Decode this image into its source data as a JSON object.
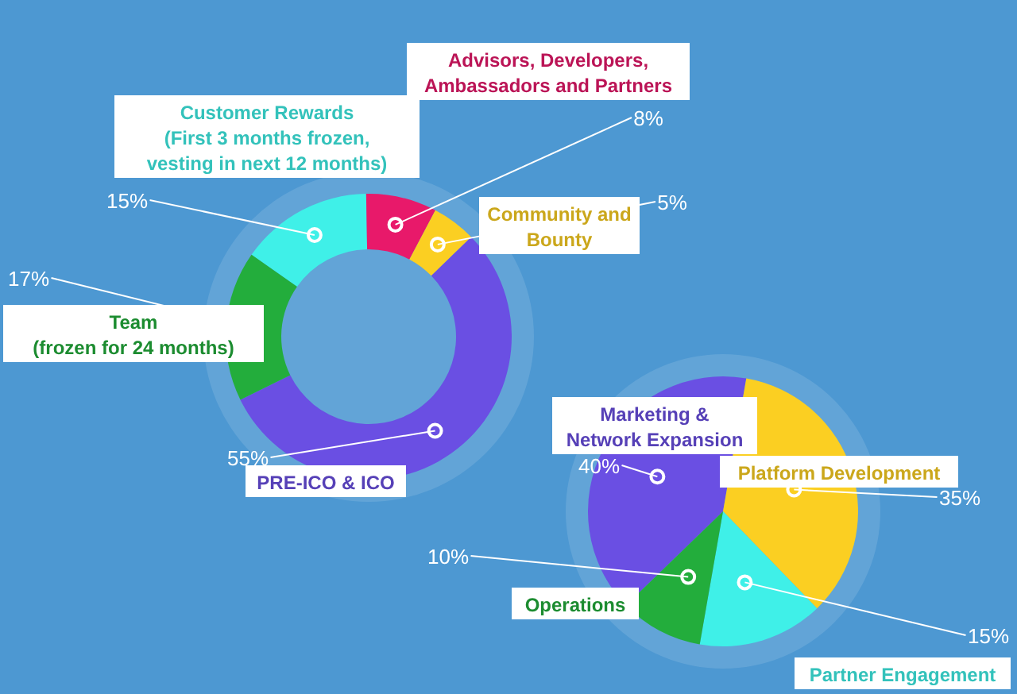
{
  "chart_data": [
    {
      "type": "donut",
      "categories": [
        "Customer Rewards\n(First 3 months frozen,\nvesting in next 12 months)",
        "Advisors, Developers,\nAmbassadors and Partners",
        "Community and\nBounty",
        "PRE-ICO & ICO",
        "Team\n(frozen for 24 months)"
      ],
      "values": [
        15,
        8,
        5,
        55,
        17
      ],
      "value_labels": [
        "15%",
        "8%",
        "5%",
        "55%",
        "17%"
      ],
      "colors": [
        "#3ff0e8",
        "#e8196a",
        "#fbcf22",
        "#6a4fe3",
        "#23ad3c"
      ],
      "legend": false
    },
    {
      "type": "pie",
      "categories": [
        "Marketing &\nNetwork Expansion",
        "Platform Development",
        "Partner Engagement",
        "Operations"
      ],
      "values": [
        40,
        35,
        15,
        10
      ],
      "value_labels": [
        "40%",
        "35%",
        "15%",
        "10%"
      ],
      "colors": [
        "#6a4fe3",
        "#fbcf22",
        "#3ff0e8",
        "#23ad3c"
      ],
      "legend": false
    }
  ]
}
